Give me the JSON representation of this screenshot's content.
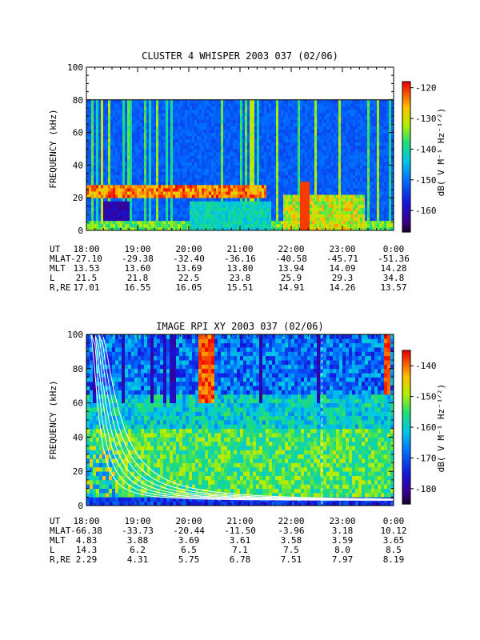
{
  "chart_data": [
    {
      "type": "heatmap",
      "title": "CLUSTER 4 WHISPER 2003 037 (02/06)",
      "ylabel": "FREQUENCY (kHz)",
      "ylim": [
        0,
        100
      ],
      "y_ticks": [
        "0",
        "20",
        "40",
        "60",
        "80",
        "100"
      ],
      "x_ticks": [
        "18:00",
        "19:00",
        "20:00",
        "21:00",
        "22:00",
        "23:00",
        "0:00"
      ],
      "data_ceiling_khz": 80,
      "colorbar": {
        "label": "dB( V M⁻¹ Hz⁻¹ᐟ²)",
        "ticks": [
          "-120",
          "-130",
          "-140",
          "-150",
          "-160"
        ],
        "range": [
          -167,
          -118
        ]
      },
      "ephemeris": {
        "row_labels": [
          "UT",
          "MLAT",
          "MLT",
          "L",
          "R,RE"
        ],
        "rows": [
          [
            "18:00",
            "19:00",
            "20:00",
            "21:00",
            "22:00",
            "23:00",
            "0:00"
          ],
          [
            "-27.10",
            "-29.38",
            "-32.40",
            "-36.16",
            "-40.58",
            "-45.71",
            "-51.36"
          ],
          [
            "13.53",
            "13.60",
            "13.69",
            "13.80",
            "13.94",
            "14.09",
            "14.28"
          ],
          [
            "21.5",
            "21.8",
            "22.5",
            "23.8",
            "25.9",
            "29.3",
            "34.8"
          ],
          [
            "17.01",
            "16.55",
            "16.05",
            "15.51",
            "14.91",
            "14.26",
            "13.57"
          ]
        ]
      }
    },
    {
      "type": "heatmap",
      "title": "IMAGE RPI XY 2003 037 (02/06)",
      "ylabel": "FREQUENCY (kHz)",
      "ylim": [
        0,
        100
      ],
      "y_ticks": [
        "0",
        "20",
        "40",
        "60",
        "80",
        "100"
      ],
      "x_ticks": [
        "18:00",
        "19:00",
        "20:00",
        "21:00",
        "22:00",
        "23:00",
        "0:00"
      ],
      "colorbar": {
        "label": "dB( V M⁻¹ Hz⁻¹ᐟ²)",
        "ticks": [
          "-140",
          "-150",
          "-160",
          "-170",
          "-180"
        ],
        "range": [
          -185,
          -135
        ]
      },
      "ephemeris": {
        "row_labels": [
          "UT",
          "MLAT",
          "MLT",
          "L",
          "R,RE"
        ],
        "rows": [
          [
            "18:00",
            "19:00",
            "20:00",
            "21:00",
            "22:00",
            "23:00",
            "0:00"
          ],
          [
            "-66.38",
            "-33.73",
            "-20.44",
            "-11.50",
            "-3.96",
            "3.18",
            "10.12"
          ],
          [
            "4.83",
            "3.88",
            "3.69",
            "3.61",
            "3.58",
            "3.59",
            "3.65"
          ],
          [
            "14.3",
            "6.2",
            "6.5",
            "7.1",
            "7.5",
            "8.0",
            "8.5"
          ],
          [
            "2.29",
            "4.31",
            "5.75",
            "6.78",
            "7.51",
            "7.97",
            "8.19"
          ]
        ]
      }
    }
  ]
}
